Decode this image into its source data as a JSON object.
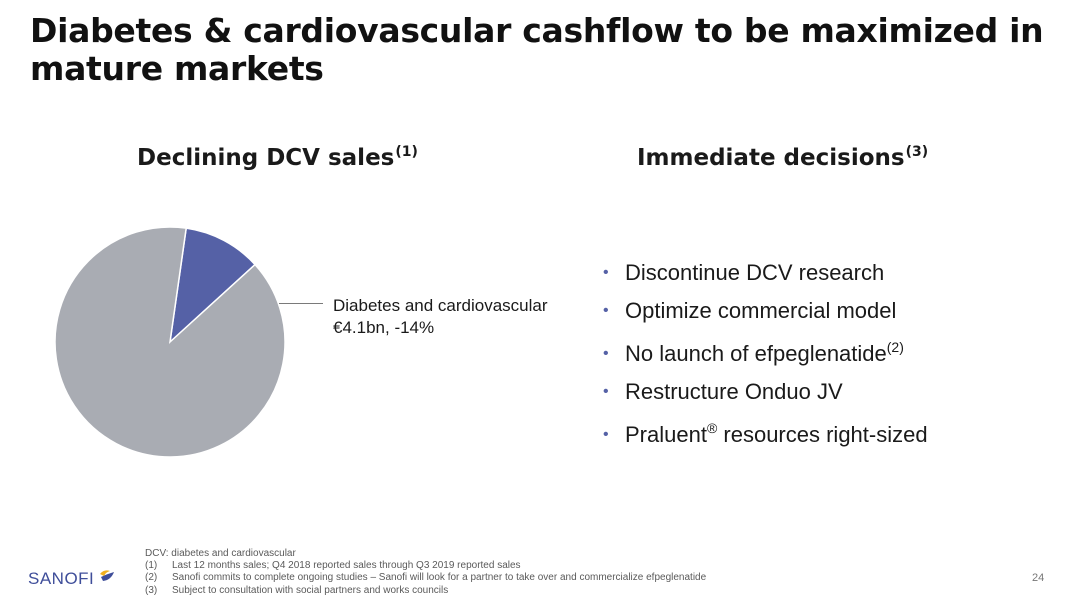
{
  "title": "Diabetes & cardiovascular cashflow to be maximized in mature markets",
  "left": {
    "heading": "Declining DCV sales",
    "heading_note": "(1)",
    "callout_line1": "Diabetes and cardiovascular",
    "callout_line2": "€4.1bn, -14%"
  },
  "right": {
    "heading": "Immediate decisions",
    "heading_note": "(3)",
    "bullets": [
      {
        "text": "Discontinue DCV research",
        "sup": ""
      },
      {
        "text": "Optimize commercial model",
        "sup": ""
      },
      {
        "text": "No launch of efpeglenatide",
        "sup": "(2)"
      },
      {
        "text": "Restructure Onduo JV",
        "sup": ""
      },
      {
        "text": "Praluent",
        "sup": "®",
        "text_after": " resources right-sized"
      }
    ]
  },
  "chart_data": {
    "type": "pie",
    "slices": [
      {
        "label": "Diabetes and cardiovascular",
        "value": 11,
        "color": "#5561a6"
      },
      {
        "label": "",
        "value": 89,
        "color": "#a9acb3"
      }
    ]
  },
  "footnotes": {
    "dcv": "DCV: diabetes and cardiovascular",
    "items": [
      {
        "num": "(1)",
        "text": "Last 12 months sales; Q4 2018 reported sales through Q3 2019 reported sales"
      },
      {
        "num": "(2)",
        "text": "Sanofi commits to complete ongoing studies – Sanofi will look for a partner to take over and commercialize efpeglenatide"
      },
      {
        "num": "(3)",
        "text": "Subject to consultation with social partners and works councils"
      }
    ]
  },
  "logo": {
    "text": "SANOFI",
    "icon": "sanofi-bird-icon",
    "colors": [
      "#f2b01e",
      "#3f4e9a"
    ]
  },
  "page_number": "24"
}
